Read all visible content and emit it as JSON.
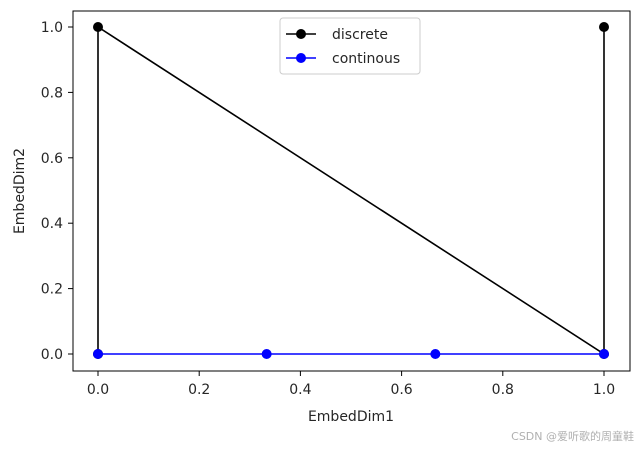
{
  "chart_data": {
    "type": "line",
    "title": "",
    "xlabel": "EmbedDim1",
    "ylabel": "EmbedDim2",
    "xlim": [
      -0.05,
      1.05
    ],
    "ylim": [
      -0.05,
      1.05
    ],
    "xticks": [
      "0.0",
      "0.2",
      "0.4",
      "0.6",
      "0.8",
      "1.0"
    ],
    "yticks": [
      "0.0",
      "0.2",
      "0.4",
      "0.6",
      "0.8",
      "1.0"
    ],
    "grid": false,
    "legend_position": "upper center",
    "series": [
      {
        "name": "discrete",
        "color": "#000000",
        "marker": "o",
        "x": [
          0.0,
          0.0,
          1.0,
          1.0
        ],
        "y": [
          0.0,
          1.0,
          0.0,
          1.0
        ]
      },
      {
        "name": "continous",
        "color": "#0000ff",
        "marker": "o",
        "x": [
          0.0,
          0.3333,
          0.6667,
          1.0
        ],
        "y": [
          0.0,
          0.0,
          0.0,
          0.0
        ]
      }
    ]
  },
  "legend": {
    "items": [
      {
        "label": "discrete",
        "color": "#000000"
      },
      {
        "label": "continous",
        "color": "#0000ff"
      }
    ]
  },
  "watermark": "CSDN @爱听歌的周童鞋"
}
